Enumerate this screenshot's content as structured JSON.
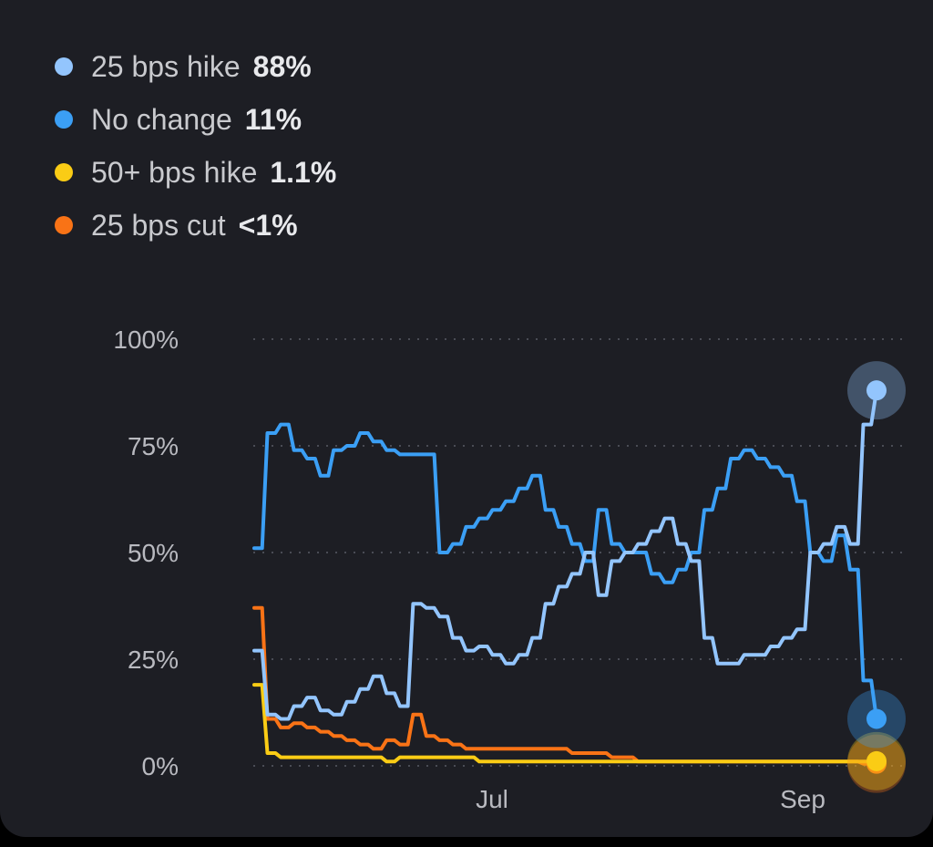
{
  "legend": {
    "items": [
      {
        "name": "25 bps hike",
        "value": "88%",
        "color": "#93c5fd"
      },
      {
        "name": "No change",
        "value": "11%",
        "color": "#3b9ff5"
      },
      {
        "name": "50+ bps hike",
        "value": "1.1%",
        "color": "#facc15"
      },
      {
        "name": "25 bps cut",
        "value": "<1%",
        "color": "#f97316"
      }
    ]
  },
  "chart_data": {
    "type": "line",
    "title": "",
    "xlabel": "",
    "ylabel": "",
    "x_ticks": [
      "Jul",
      "Sep"
    ],
    "y_ticks": [
      "100%",
      "75%",
      "50%",
      "25%",
      "0%"
    ],
    "ylim": [
      0,
      100
    ],
    "grid": "horizontal dotted",
    "legend_position": "top-left",
    "series": [
      {
        "name": "No change",
        "color": "#3b9ff5",
        "values": [
          51,
          78,
          80,
          74,
          72,
          68,
          74,
          75,
          78,
          76,
          74,
          73,
          73,
          73,
          50,
          52,
          56,
          58,
          60,
          62,
          65,
          68,
          60,
          56,
          52,
          48,
          60,
          52,
          50,
          50,
          45,
          43,
          46,
          50,
          60,
          65,
          72,
          74,
          72,
          70,
          68,
          62,
          50,
          48,
          54,
          46,
          20,
          11
        ]
      },
      {
        "name": "25 bps hike",
        "color": "#93c5fd",
        "values": [
          27,
          12,
          11,
          14,
          16,
          13,
          12,
          15,
          18,
          21,
          17,
          14,
          38,
          37,
          35,
          30,
          27,
          28,
          26,
          24,
          26,
          30,
          38,
          42,
          45,
          50,
          40,
          48,
          50,
          52,
          55,
          58,
          52,
          48,
          30,
          24,
          24,
          26,
          26,
          28,
          30,
          32,
          50,
          52,
          56,
          52,
          80,
          88
        ]
      },
      {
        "name": "50+ bps hike",
        "color": "#facc15",
        "values": [
          19,
          3,
          2,
          2,
          2,
          2,
          2,
          2,
          2,
          2,
          1,
          2,
          2,
          2,
          2,
          2,
          2,
          1,
          1,
          1,
          1,
          1,
          1,
          1,
          1,
          1,
          1,
          1,
          1,
          1,
          1,
          1,
          1,
          1,
          1,
          1,
          1,
          1,
          1,
          1,
          1,
          1,
          1,
          1,
          1,
          1,
          1,
          1.1
        ]
      },
      {
        "name": "25 bps cut",
        "color": "#f97316",
        "values": [
          37,
          11,
          9,
          10,
          9,
          8,
          7,
          6,
          5,
          4,
          6,
          5,
          12,
          7,
          6,
          5,
          4,
          4,
          4,
          4,
          4,
          4,
          4,
          4,
          3,
          3,
          3,
          2,
          2,
          1,
          1,
          1,
          1,
          1,
          1,
          1,
          1,
          1,
          1,
          1,
          1,
          1,
          1,
          1,
          1,
          1,
          0.5,
          0.5
        ]
      }
    ]
  }
}
